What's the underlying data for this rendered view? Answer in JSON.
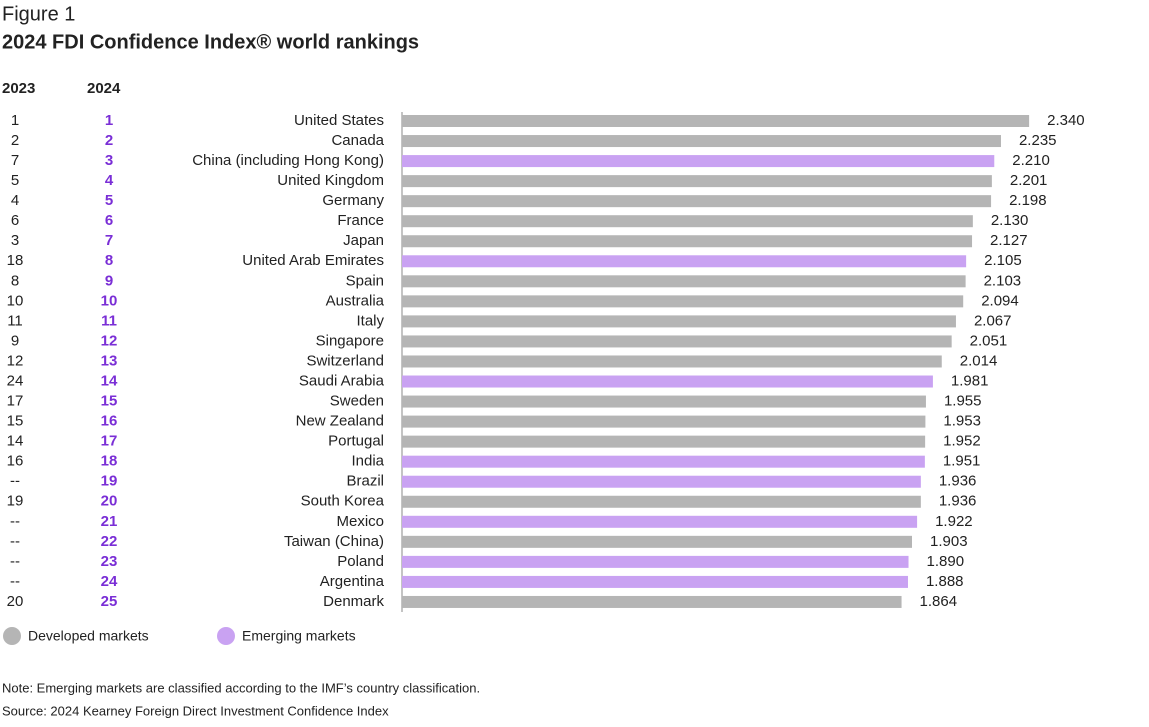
{
  "chart_data": {
    "type": "bar",
    "orientation": "horizontal",
    "figure_label": "Figure 1",
    "title": "2024 FDI Confidence Index® world rankings",
    "rank_columns": [
      {
        "header": "2023",
        "ranks": [
          "1",
          "2",
          "7",
          "5",
          "4",
          "6",
          "3",
          "18",
          "8",
          "10",
          "11",
          "9",
          "12",
          "24",
          "17",
          "15",
          "14",
          "16",
          "--",
          "19",
          "--",
          "--",
          "--",
          "--",
          "20"
        ],
        "color": "#222222"
      },
      {
        "header": "2024",
        "ranks": [
          "1",
          "2",
          "3",
          "4",
          "5",
          "6",
          "7",
          "8",
          "9",
          "10",
          "11",
          "12",
          "13",
          "14",
          "15",
          "16",
          "17",
          "18",
          "19",
          "20",
          "21",
          "22",
          "23",
          "24",
          "25"
        ],
        "color": "#7a2ed6"
      }
    ],
    "categories": [
      "United States",
      "Canada",
      "China (including Hong Kong)",
      "United Kingdom",
      "Germany",
      "France",
      "Japan",
      "United Arab Emirates",
      "Spain",
      "Australia",
      "Italy",
      "Singapore",
      "Switzerland",
      "Saudi Arabia",
      "Sweden",
      "New Zealand",
      "Portugal",
      "India",
      "Brazil",
      "South Korea",
      "Mexico",
      "Taiwan (China)",
      "Poland",
      "Argentina",
      "Denmark"
    ],
    "series": [
      {
        "name": "Developed markets",
        "color": "#b5b5b5",
        "values": [
          2.34,
          2.235,
          null,
          2.201,
          2.198,
          2.13,
          2.127,
          null,
          2.103,
          2.094,
          2.067,
          2.051,
          2.014,
          null,
          1.955,
          1.953,
          1.952,
          null,
          null,
          1.936,
          null,
          1.903,
          null,
          null,
          1.864
        ],
        "value_labels": [
          "2.340",
          "2.235",
          null,
          "2.201",
          "2.198",
          "2.130",
          "2.127",
          null,
          "2.103",
          "2.094",
          "2.067",
          "2.051",
          "2.014",
          null,
          "1.955",
          "1.953",
          "1.952",
          null,
          null,
          "1.936",
          null,
          "1.903",
          null,
          null,
          "1.864"
        ]
      },
      {
        "name": "Emerging markets",
        "color": "#c9a2f2",
        "values": [
          null,
          null,
          2.21,
          null,
          null,
          null,
          null,
          2.105,
          null,
          null,
          null,
          null,
          null,
          1.981,
          null,
          null,
          null,
          1.951,
          1.936,
          null,
          1.922,
          null,
          1.89,
          1.888,
          null
        ],
        "value_labels": [
          null,
          null,
          "2.210",
          null,
          null,
          null,
          null,
          "2.105",
          null,
          null,
          null,
          null,
          null,
          "1.981",
          null,
          null,
          null,
          "1.951",
          "1.936",
          null,
          "1.922",
          null,
          "1.890",
          "1.888",
          null
        ]
      }
    ],
    "xlim": [
      0,
      2.5
    ],
    "note": "Note: Emerging markets are classified according to the IMF’s country classification.",
    "source": "Source: 2024 Kearney Foreign Direct Investment Confidence Index"
  }
}
